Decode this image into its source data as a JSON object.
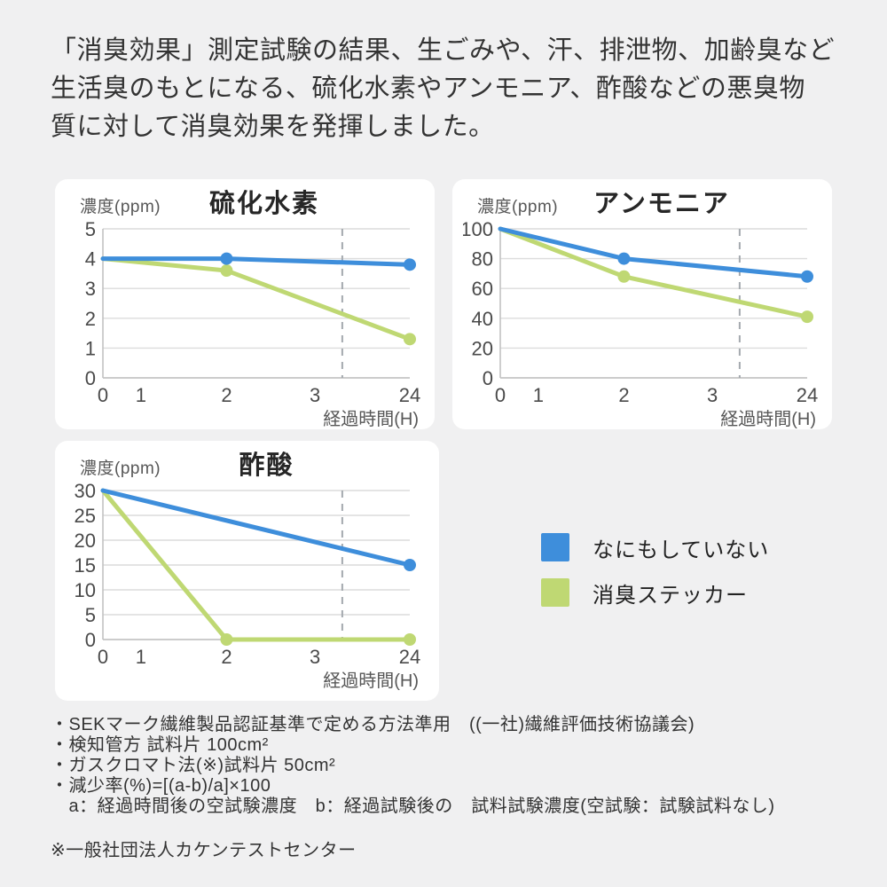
{
  "page": {
    "background": "#f0f0f1",
    "card_background": "#ffffff"
  },
  "header": {
    "text": "「消臭効果」測定試験の結果、生ごみや、汗、排泄物、加齢臭など\n生活臭のもとになる、硫化水素やアンモニア、酢酸などの悪臭物\n質に対して消臭効果を発揮しました。"
  },
  "colors": {
    "blue": "#3e8edb",
    "green": "#bfd873",
    "grid": "#dcdcdc",
    "axis": "#c2c2c2",
    "dashed": "#a4a9ae",
    "tick_text": "#4a4a4a",
    "label_text": "#575757"
  },
  "legend": {
    "items": [
      {
        "label": "なにもしていない",
        "color": "#3e8edb"
      },
      {
        "label": "消臭ステッカー",
        "color": "#bfd873"
      }
    ]
  },
  "chart_data": [
    {
      "type": "line",
      "title": "硫化水素",
      "ylabel": "濃度(ppm)",
      "xlabel": "経過時間(H)",
      "x": [
        0,
        1,
        2,
        3,
        24
      ],
      "x_tick_labels": [
        "0",
        "1",
        "2",
        "3",
        "24"
      ],
      "x_positions": [
        0,
        0.124,
        0.403,
        0.691,
        1.0
      ],
      "ylim": [
        0,
        5
      ],
      "yticks": [
        0,
        1,
        2,
        3,
        4,
        5
      ],
      "dashed_x": 0.78,
      "grid": true,
      "series": [
        {
          "name": "なにもしていない",
          "color": "blue",
          "points": [
            {
              "t": 0,
              "v": 4,
              "dot": false
            },
            {
              "t": 2,
              "v": 4,
              "dot": true
            },
            {
              "t": 24,
              "v": 3.8,
              "dot": true
            }
          ]
        },
        {
          "name": "消臭ステッカー",
          "color": "green",
          "points": [
            {
              "t": 0,
              "v": 4,
              "dot": false
            },
            {
              "t": 2,
              "v": 3.6,
              "dot": true
            },
            {
              "t": 24,
              "v": 1.3,
              "dot": true
            }
          ]
        }
      ]
    },
    {
      "type": "line",
      "title": "アンモニア",
      "ylabel": "濃度(ppm)",
      "xlabel": "経過時間(H)",
      "x": [
        0,
        1,
        2,
        3,
        24
      ],
      "x_tick_labels": [
        "0",
        "1",
        "2",
        "3",
        "24"
      ],
      "x_positions": [
        0,
        0.124,
        0.403,
        0.691,
        1.0
      ],
      "ylim": [
        0,
        100
      ],
      "yticks": [
        0,
        20,
        40,
        60,
        80,
        100
      ],
      "dashed_x": 0.78,
      "grid": true,
      "series": [
        {
          "name": "なにもしていない",
          "color": "blue",
          "points": [
            {
              "t": 0,
              "v": 100,
              "dot": false
            },
            {
              "t": 2,
              "v": 80,
              "dot": true
            },
            {
              "t": 24,
              "v": 68,
              "dot": true
            }
          ]
        },
        {
          "name": "消臭ステッカー",
          "color": "green",
          "points": [
            {
              "t": 0,
              "v": 100,
              "dot": false
            },
            {
              "t": 2,
              "v": 68,
              "dot": true
            },
            {
              "t": 24,
              "v": 41,
              "dot": true
            }
          ]
        }
      ]
    },
    {
      "type": "line",
      "title": "酢酸",
      "ylabel": "濃度(ppm)",
      "xlabel": "経過時間(H)",
      "x": [
        0,
        1,
        2,
        3,
        24
      ],
      "x_tick_labels": [
        "0",
        "1",
        "2",
        "3",
        "24"
      ],
      "x_positions": [
        0,
        0.124,
        0.403,
        0.691,
        1.0
      ],
      "ylim": [
        0,
        30
      ],
      "yticks": [
        0,
        5,
        10,
        15,
        20,
        25,
        30
      ],
      "dashed_x": 0.78,
      "grid": true,
      "series": [
        {
          "name": "なにもしていない",
          "color": "blue",
          "points": [
            {
              "t": 0,
              "v": 30,
              "dot": false
            },
            {
              "t": 24,
              "v": 15,
              "dot": true
            }
          ]
        },
        {
          "name": "消臭ステッカー",
          "color": "green",
          "points": [
            {
              "t": 0,
              "v": 30,
              "dot": false
            },
            {
              "t": 2,
              "v": 0,
              "dot": true
            },
            {
              "t": 24,
              "v": 0,
              "dot": true
            }
          ]
        }
      ]
    }
  ],
  "footer": {
    "notes": [
      "・SEKマーク繊維製品認証基準で定める方法準用　((一社)繊維評価技術協議会)",
      "・検知管方 試料片 100cm²",
      "・ガスクロマト法(※)試料片 50cm²",
      "・減少率(%)=[(a-b)/a]×100",
      "　a：経過時間後の空試験濃度　b：経過試験後の　試料試験濃度(空試験：試験試料なし)"
    ],
    "source": "※一般社団法人カケンテストセンター"
  }
}
